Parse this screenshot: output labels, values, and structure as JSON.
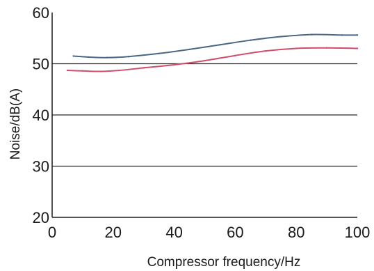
{
  "chart_data": {
    "type": "line",
    "title": "",
    "xlabel": "Compressor frequency/Hz",
    "ylabel": "Noise/dB(A)",
    "xlim": [
      0,
      100
    ],
    "ylim": [
      20,
      60
    ],
    "x_ticks": [
      0,
      20,
      40,
      60,
      80,
      100
    ],
    "y_ticks": [
      20,
      30,
      40,
      50,
      60
    ],
    "grid": "horizontal",
    "legend": "none",
    "series": [
      {
        "color": "#4a6785",
        "x": [
          7,
          12,
          18,
          25,
          35,
          45,
          55,
          65,
          75,
          85,
          95,
          100
        ],
        "y": [
          51.5,
          51.3,
          51.2,
          51.4,
          52.0,
          52.8,
          53.7,
          54.6,
          55.3,
          55.7,
          55.6,
          55.6
        ]
      },
      {
        "color": "#d04d6e",
        "x": [
          5,
          10,
          16,
          22,
          30,
          40,
          50,
          60,
          70,
          80,
          90,
          100
        ],
        "y": [
          48.7,
          48.6,
          48.5,
          48.7,
          49.2,
          49.8,
          50.6,
          51.6,
          52.5,
          53.0,
          53.1,
          53.0
        ]
      }
    ]
  }
}
